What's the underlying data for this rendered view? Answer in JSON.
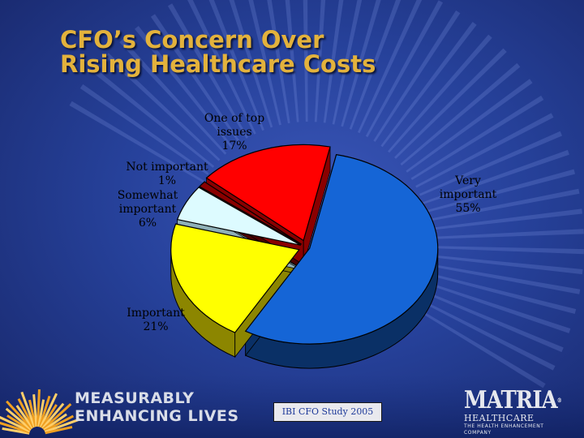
{
  "chart_data": {
    "type": "pie",
    "title_lines": [
      "CFO’s Concern Over",
      "Rising Healthcare Costs"
    ],
    "slices": [
      {
        "name": "Very important",
        "name_lines": [
          "Very",
          "important"
        ],
        "value": 55,
        "display": "55%",
        "color": "#1565d6",
        "side_color": "#0a3066"
      },
      {
        "name": "Important",
        "name_lines": [
          "Important"
        ],
        "value": 21,
        "display": "21%",
        "color": "#ffff00",
        "side_color": "#8c8600"
      },
      {
        "name": "Somewhat important",
        "name_lines": [
          "Somewhat",
          "important"
        ],
        "value": 6,
        "display": "6%",
        "color": "#ddfbff",
        "side_color": "#8fb0b8"
      },
      {
        "name": "Not important",
        "name_lines": [
          "Not important"
        ],
        "value": 1,
        "display": "1%",
        "color": "#8a0000",
        "side_color": "#4a0000"
      },
      {
        "name": "One of top issues",
        "name_lines": [
          "One of top",
          "issues"
        ],
        "value": 17,
        "display": "17%",
        "color": "#ff0000",
        "side_color": "#8a0000"
      }
    ],
    "style": "3d-tilted, exploded",
    "legend": "none (data labels)"
  },
  "footer": {
    "slogan_lines": [
      "MEASURABLY",
      "ENHANCING LIVES"
    ],
    "source": "IBI CFO Study 2005",
    "logo": {
      "name": "MATRIA",
      "reg": "®",
      "sub": "HEALTHCARE",
      "tagline": "THE HEALTH ENHANCEMENT COMPANY"
    }
  }
}
